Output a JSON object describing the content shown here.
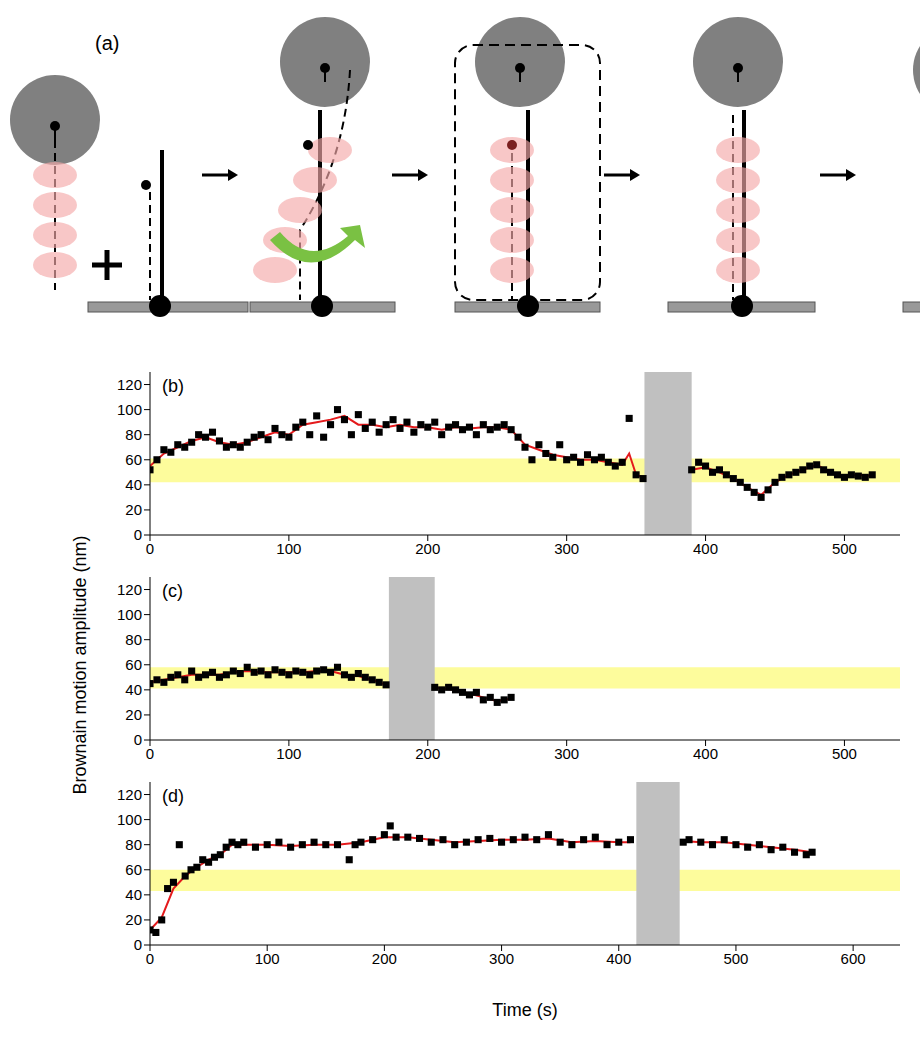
{
  "panel_a": {
    "label": "(a)"
  },
  "y_axis_label": "Brownain motion amplitude (nm)",
  "x_axis_label": "Time (s)",
  "chart_data": [
    {
      "type": "scatter",
      "title": "(b)",
      "xlim": [
        0,
        540
      ],
      "xticks": [
        0,
        100,
        200,
        300,
        400,
        500
      ],
      "ylim": [
        0,
        130
      ],
      "yticks": [
        0,
        20,
        40,
        60,
        80,
        100,
        120
      ],
      "highlight_band": {
        "y": [
          42,
          61
        ],
        "color": "#fdfc9c"
      },
      "shaded_region": {
        "x": [
          356,
          390
        ],
        "color": "#c0c0c0"
      },
      "series": [
        {
          "type": "scatter",
          "marker": "square",
          "color": "#000000",
          "x": [
            0,
            5,
            10,
            15,
            20,
            25,
            30,
            35,
            40,
            45,
            50,
            55,
            60,
            65,
            70,
            75,
            80,
            85,
            90,
            95,
            100,
            105,
            110,
            115,
            120,
            125,
            130,
            135,
            140,
            145,
            150,
            155,
            160,
            165,
            170,
            175,
            180,
            185,
            190,
            195,
            200,
            205,
            210,
            215,
            220,
            225,
            230,
            235,
            240,
            245,
            250,
            255,
            260,
            265,
            270,
            275,
            280,
            285,
            290,
            295,
            300,
            305,
            310,
            315,
            320,
            325,
            330,
            335,
            340,
            345,
            350,
            355,
            390,
            395,
            400,
            405,
            410,
            415,
            420,
            425,
            430,
            435,
            440,
            445,
            450,
            455,
            460,
            465,
            470,
            475,
            480,
            485,
            490,
            495,
            500,
            505,
            510,
            515,
            520
          ],
          "values": [
            52,
            60,
            68,
            66,
            72,
            70,
            74,
            80,
            78,
            82,
            75,
            70,
            72,
            70,
            74,
            78,
            80,
            76,
            85,
            80,
            78,
            86,
            90,
            80,
            95,
            78,
            88,
            100,
            92,
            80,
            96,
            85,
            90,
            82,
            88,
            92,
            85,
            90,
            82,
            88,
            86,
            90,
            80,
            86,
            88,
            84,
            86,
            80,
            88,
            84,
            86,
            88,
            84,
            78,
            70,
            60,
            72,
            65,
            62,
            72,
            60,
            62,
            58,
            64,
            60,
            62,
            58,
            55,
            58,
            93,
            48,
            45,
            52,
            58,
            55,
            50,
            52,
            48,
            45,
            42,
            38,
            34,
            30,
            36,
            42,
            46,
            48,
            50,
            52,
            55,
            56,
            52,
            50,
            48,
            46,
            48,
            47,
            46,
            48
          ]
        },
        {
          "type": "line",
          "color": "#e41a1c",
          "x": [
            0,
            10,
            20,
            30,
            40,
            50,
            60,
            70,
            80,
            90,
            100,
            110,
            120,
            130,
            140,
            150,
            160,
            170,
            180,
            190,
            200,
            210,
            220,
            230,
            240,
            250,
            260,
            270,
            280,
            290,
            300,
            310,
            320,
            330,
            340,
            345,
            350,
            355,
            370,
            390,
            400,
            410,
            420,
            430,
            440,
            450,
            460,
            470,
            480,
            490,
            500,
            510,
            520
          ],
          "values": [
            55,
            65,
            70,
            75,
            78,
            74,
            72,
            74,
            78,
            82,
            80,
            88,
            90,
            92,
            95,
            88,
            88,
            86,
            88,
            86,
            86,
            84,
            86,
            85,
            86,
            86,
            84,
            72,
            68,
            64,
            62,
            60,
            60,
            58,
            56,
            65,
            48,
            46,
            null,
            52,
            54,
            50,
            45,
            38,
            32,
            42,
            48,
            52,
            56,
            50,
            47,
            48,
            47
          ]
        }
      ]
    },
    {
      "type": "scatter",
      "title": "(c)",
      "xlim": [
        0,
        540
      ],
      "xticks": [
        0,
        100,
        200,
        300,
        400,
        500
      ],
      "ylim": [
        0,
        130
      ],
      "yticks": [
        0,
        20,
        40,
        60,
        80,
        100,
        120
      ],
      "highlight_band": {
        "y": [
          41,
          58
        ],
        "color": "#fdfc9c"
      },
      "shaded_region": {
        "x": [
          172,
          205
        ],
        "color": "#c0c0c0"
      },
      "series": [
        {
          "type": "scatter",
          "marker": "square",
          "color": "#000000",
          "x": [
            0,
            5,
            10,
            15,
            20,
            25,
            30,
            35,
            40,
            45,
            50,
            55,
            60,
            65,
            70,
            75,
            80,
            85,
            90,
            95,
            100,
            105,
            110,
            115,
            120,
            125,
            130,
            135,
            140,
            145,
            150,
            155,
            160,
            165,
            170,
            205,
            210,
            215,
            220,
            225,
            230,
            235,
            240,
            245,
            250,
            255,
            260
          ],
          "values": [
            45,
            48,
            46,
            50,
            52,
            48,
            55,
            50,
            52,
            54,
            50,
            52,
            55,
            53,
            58,
            54,
            55,
            52,
            56,
            54,
            52,
            55,
            54,
            52,
            55,
            56,
            54,
            58,
            52,
            50,
            53,
            50,
            48,
            46,
            44,
            42,
            40,
            42,
            40,
            38,
            36,
            38,
            32,
            34,
            30,
            32,
            34
          ]
        },
        {
          "type": "line",
          "color": "#e41a1c",
          "x": [
            0,
            10,
            20,
            30,
            40,
            50,
            60,
            70,
            80,
            90,
            100,
            110,
            120,
            130,
            140,
            150,
            160,
            170,
            190,
            205,
            210,
            220,
            230,
            240,
            250,
            260
          ],
          "values": [
            46,
            48,
            50,
            52,
            52,
            52,
            54,
            55,
            54,
            54,
            54,
            54,
            55,
            55,
            52,
            51,
            48,
            44,
            null,
            42,
            41,
            40,
            37,
            34,
            31,
            33
          ]
        }
      ]
    },
    {
      "type": "scatter",
      "title": "(d)",
      "xlim": [
        0,
        640
      ],
      "xticks": [
        0,
        100,
        200,
        300,
        400,
        500,
        600
      ],
      "ylim": [
        0,
        130
      ],
      "yticks": [
        0,
        20,
        40,
        60,
        80,
        100,
        120
      ],
      "highlight_band": {
        "y": [
          43,
          60
        ],
        "color": "#fdfc9c"
      },
      "shaded_region": {
        "x": [
          415,
          452
        ],
        "color": "#c0c0c0"
      },
      "series": [
        {
          "type": "scatter",
          "marker": "square",
          "color": "#000000",
          "x": [
            0,
            5,
            10,
            15,
            20,
            25,
            30,
            35,
            40,
            45,
            50,
            55,
            60,
            65,
            70,
            75,
            80,
            90,
            100,
            110,
            120,
            130,
            140,
            150,
            160,
            170,
            175,
            180,
            190,
            200,
            205,
            210,
            220,
            230,
            240,
            250,
            260,
            270,
            280,
            290,
            300,
            310,
            320,
            330,
            340,
            350,
            360,
            370,
            380,
            390,
            400,
            410,
            455,
            460,
            470,
            480,
            490,
            500,
            510,
            520,
            530,
            540,
            550,
            560,
            565
          ],
          "values": [
            12,
            10,
            20,
            45,
            50,
            80,
            55,
            60,
            62,
            68,
            66,
            70,
            72,
            78,
            82,
            80,
            82,
            78,
            80,
            82,
            78,
            80,
            82,
            80,
            80,
            68,
            80,
            82,
            84,
            88,
            95,
            86,
            86,
            85,
            82,
            84,
            80,
            82,
            84,
            85,
            82,
            84,
            86,
            84,
            88,
            82,
            80,
            84,
            86,
            80,
            82,
            84,
            82,
            84,
            82,
            80,
            84,
            80,
            78,
            80,
            76,
            78,
            74,
            72,
            74
          ]
        },
        {
          "type": "line",
          "color": "#e41a1c",
          "x": [
            0,
            10,
            20,
            30,
            40,
            50,
            60,
            70,
            80,
            100,
            120,
            140,
            160,
            180,
            200,
            220,
            240,
            260,
            280,
            300,
            320,
            340,
            360,
            380,
            400,
            410,
            430,
            455,
            470,
            490,
            510,
            530,
            550,
            565
          ],
          "values": [
            12,
            22,
            45,
            55,
            62,
            68,
            72,
            80,
            80,
            80,
            79,
            80,
            80,
            82,
            86,
            86,
            84,
            82,
            83,
            84,
            84,
            85,
            82,
            83,
            82,
            82,
            null,
            83,
            82,
            82,
            80,
            78,
            76,
            74
          ]
        }
      ]
    }
  ]
}
